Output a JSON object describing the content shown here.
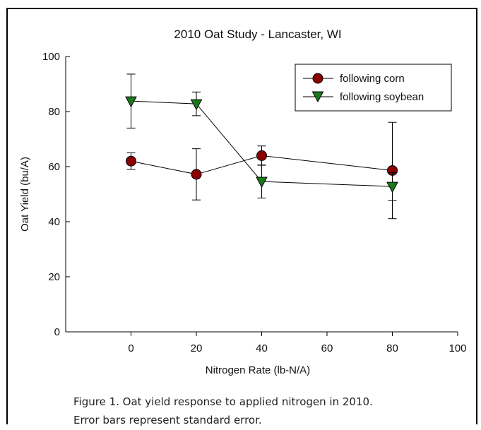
{
  "chart_data": {
    "type": "line",
    "title": "2010 Oat Study - Lancaster, WI",
    "xlabel": "Nitrogen Rate (lb-N/A)",
    "ylabel": "Oat Yield (bu/A)",
    "xlim": [
      -20,
      100
    ],
    "ylim": [
      0,
      100
    ],
    "x_ticks": [
      0,
      20,
      40,
      60,
      80,
      100
    ],
    "y_ticks": [
      0,
      20,
      40,
      60,
      80,
      100
    ],
    "grid": false,
    "legend_position": "top-right",
    "error_bars": "standard error",
    "series": [
      {
        "name": "following corn",
        "marker": "circle",
        "color": "#8b0000",
        "x": [
          0,
          20,
          40,
          80
        ],
        "y": [
          62,
          57.2,
          64,
          58.6
        ],
        "err": [
          3,
          9.3,
          3.5,
          17.5
        ]
      },
      {
        "name": "following soybean",
        "marker": "triangle-down",
        "color": "#1a7a1a",
        "x": [
          0,
          20,
          40,
          80
        ],
        "y": [
          83.8,
          82.8,
          54.6,
          52.8
        ],
        "err": [
          9.8,
          4.3,
          6,
          5
        ]
      }
    ]
  },
  "caption": {
    "line1": "Figure 1. Oat yield response to applied nitrogen in 2010.",
    "line2": "Error bars represent standard error."
  }
}
